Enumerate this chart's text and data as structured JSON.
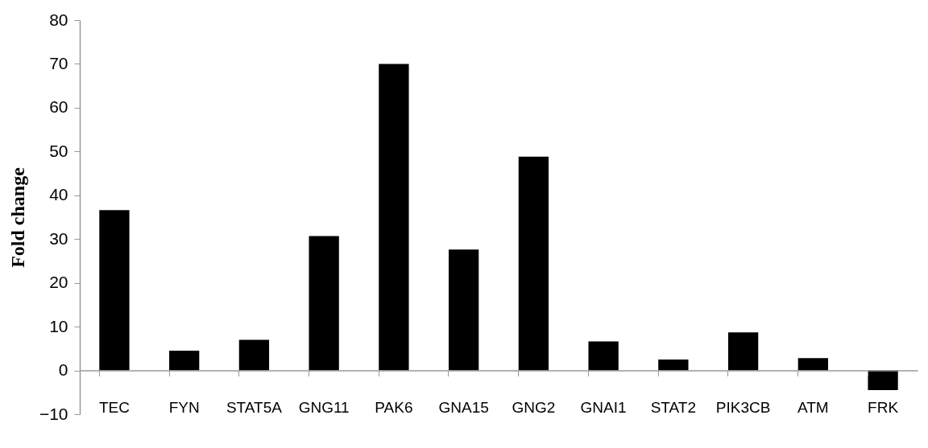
{
  "chart_data": {
    "type": "bar",
    "ylabel": "Fold change",
    "categories": [
      "TEC",
      "FYN",
      "STAT5A",
      "GNG11",
      "PAK6",
      "GNA15",
      "GNG2",
      "GNAI1",
      "STAT2",
      "PIK3CB",
      "ATM",
      "FRK"
    ],
    "values": [
      36.6,
      4.5,
      7.0,
      30.7,
      70,
      27.6,
      48.8,
      6.6,
      2.5,
      8.7,
      2.8,
      -4.5
    ],
    "color": "#000000",
    "ylim": [
      -10,
      80
    ],
    "yticks": [
      -10,
      0,
      10,
      20,
      30,
      40,
      50,
      60,
      70,
      80
    ]
  }
}
